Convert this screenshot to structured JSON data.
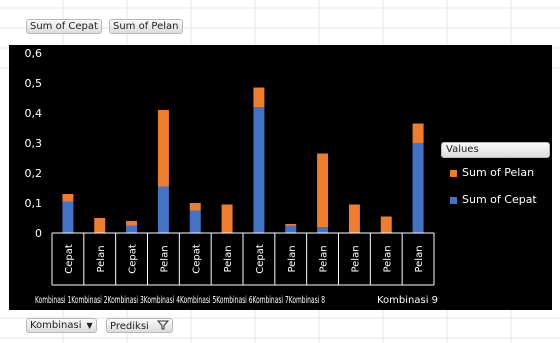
{
  "header": {
    "value_field_1": "Sum of Cepat",
    "value_field_2": "Sum of Pelan"
  },
  "footer": {
    "row_field_1": "Kombinasi",
    "row_field_2": "Prediksi"
  },
  "legend": {
    "title": "Values",
    "items": [
      {
        "label": "Sum of Pelan",
        "color": "#ed7d31"
      },
      {
        "label": "Sum of Cepat",
        "color": "#4472c4"
      }
    ]
  },
  "chart_data": {
    "type": "bar",
    "stacked": true,
    "y_ticks": [
      "0",
      "0,1",
      "0,2",
      "0,3",
      "0,4",
      "0,5",
      "0,6"
    ],
    "ylim": [
      0,
      0.6
    ],
    "grid": false,
    "legend_position": "right",
    "categories": [
      "Cepat",
      "Pelan",
      "Cepat",
      "Pelan",
      "Cepat",
      "Pelan",
      "Cepat",
      "Pelan",
      "Pelan",
      "Pelan",
      "Pelan",
      "Pelan"
    ],
    "groups": [
      "Kombinasi 1",
      "Kombinasi 2",
      "Kombinasi 3",
      "Kombinasi 4",
      "Kombinasi 5",
      "Kombinasi 6",
      "Kombinasi 7",
      "Kombinasi 8",
      "Kombinasi 9"
    ],
    "group_label_overlap": "Kombinasi 1Kombinasi 2Kombinasi 3Kombinasi 4Kombinasi 5Kombinasi 6Kombinasi 7Kombinasi 8",
    "group_label_last": "Kombinasi 9",
    "series": [
      {
        "name": "Sum of Cepat",
        "color": "#4472c4",
        "values": [
          0.105,
          0,
          0.025,
          0.155,
          0.075,
          0,
          0.42,
          0.025,
          0.02,
          0,
          0,
          0.3
        ]
      },
      {
        "name": "Sum of Pelan",
        "color": "#ed7d31",
        "values": [
          0.025,
          0.05,
          0.015,
          0.255,
          0.025,
          0.095,
          0.065,
          0.005,
          0.245,
          0.095,
          0.055,
          0.065
        ]
      }
    ]
  }
}
